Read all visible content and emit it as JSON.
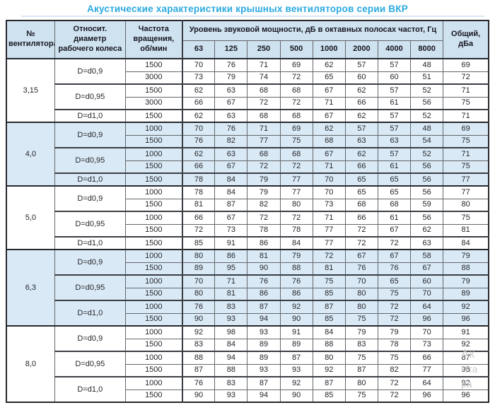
{
  "title": "Акустические характеристики крышных вентиляторов серии ВКР",
  "colors": {
    "title_accent": "#2aa9e0",
    "header_bg": "#cfe2f0",
    "shaded_section_bg": "#d9eaf6",
    "border_dark": "#26282c"
  },
  "watermark": {
    "lines": [
      "Ак",
      "Чта",
      "ра"
    ]
  },
  "table": {
    "headers": {
      "fan_number": "№ вентилятора",
      "diameter": "Относит. диаметр рабочего колеса",
      "speed": "Частота вращения, об/мин",
      "spl_group": "Уровень звуковой мощности, дБ в октавных полосах частот, Гц",
      "freq_bands": [
        "63",
        "125",
        "250",
        "500",
        "1000",
        "2000",
        "4000",
        "8000"
      ],
      "total": "Общий, дБа"
    },
    "sections": [
      {
        "fan": "3,15",
        "shaded": false,
        "groups": [
          {
            "diameter": "D=d0,9",
            "rows": [
              {
                "speed": "1500",
                "levels": [
                  70,
                  76,
                  71,
                  69,
                  62,
                  57,
                  57,
                  48
                ],
                "total": 69
              },
              {
                "speed": "3000",
                "levels": [
                  73,
                  79,
                  74,
                  72,
                  65,
                  60,
                  60,
                  51
                ],
                "total": 72
              }
            ]
          },
          {
            "diameter": "D=d0,95",
            "rows": [
              {
                "speed": "1500",
                "levels": [
                  62,
                  63,
                  68,
                  68,
                  67,
                  62,
                  57,
                  52
                ],
                "total": 71
              },
              {
                "speed": "3000",
                "levels": [
                  66,
                  67,
                  72,
                  72,
                  71,
                  66,
                  61,
                  56
                ],
                "total": 75
              }
            ]
          },
          {
            "diameter": "D=d1,0",
            "rows": [
              {
                "speed": "1500",
                "levels": [
                  62,
                  63,
                  68,
                  68,
                  67,
                  62,
                  57,
                  52
                ],
                "total": 71
              }
            ]
          }
        ]
      },
      {
        "fan": "4,0",
        "shaded": true,
        "groups": [
          {
            "diameter": "D=d0,9",
            "rows": [
              {
                "speed": "1000",
                "levels": [
                  70,
                  76,
                  71,
                  69,
                  62,
                  57,
                  57,
                  48
                ],
                "total": 69
              },
              {
                "speed": "1500",
                "levels": [
                  76,
                  82,
                  77,
                  75,
                  68,
                  63,
                  63,
                  54
                ],
                "total": 75
              }
            ]
          },
          {
            "diameter": "D=d0,95",
            "rows": [
              {
                "speed": "1000",
                "levels": [
                  62,
                  63,
                  68,
                  68,
                  67,
                  62,
                  57,
                  52
                ],
                "total": 71
              },
              {
                "speed": "1500",
                "levels": [
                  66,
                  67,
                  72,
                  72,
                  71,
                  66,
                  61,
                  56
                ],
                "total": 75
              }
            ]
          },
          {
            "diameter": "D=d1,0",
            "rows": [
              {
                "speed": "1500",
                "levels": [
                  78,
                  84,
                  79,
                  77,
                  70,
                  65,
                  65,
                  56
                ],
                "total": 77
              }
            ]
          }
        ]
      },
      {
        "fan": "5,0",
        "shaded": false,
        "groups": [
          {
            "diameter": "D=d0,9",
            "rows": [
              {
                "speed": "1000",
                "levels": [
                  78,
                  84,
                  79,
                  77,
                  70,
                  65,
                  65,
                  56
                ],
                "total": 77
              },
              {
                "speed": "1500",
                "levels": [
                  81,
                  87,
                  82,
                  80,
                  73,
                  68,
                  68,
                  59
                ],
                "total": 80
              }
            ]
          },
          {
            "diameter": "D=d0,95",
            "rows": [
              {
                "speed": "1000",
                "levels": [
                  66,
                  67,
                  72,
                  72,
                  71,
                  66,
                  61,
                  56
                ],
                "total": 75
              },
              {
                "speed": "1500",
                "levels": [
                  72,
                  73,
                  78,
                  78,
                  77,
                  72,
                  67,
                  62
                ],
                "total": 81
              }
            ]
          },
          {
            "diameter": "D=d1,0",
            "rows": [
              {
                "speed": "1500",
                "levels": [
                  85,
                  91,
                  86,
                  84,
                  77,
                  72,
                  72,
                  63
                ],
                "total": 84
              }
            ]
          }
        ]
      },
      {
        "fan": "6,3",
        "shaded": true,
        "groups": [
          {
            "diameter": "D=d0,9",
            "rows": [
              {
                "speed": "1000",
                "levels": [
                  80,
                  86,
                  81,
                  79,
                  72,
                  67,
                  67,
                  58
                ],
                "total": 79
              },
              {
                "speed": "1500",
                "levels": [
                  89,
                  95,
                  90,
                  88,
                  81,
                  76,
                  76,
                  67
                ],
                "total": 88
              }
            ]
          },
          {
            "diameter": "D=d0,95",
            "rows": [
              {
                "speed": "1000",
                "levels": [
                  70,
                  71,
                  76,
                  76,
                  75,
                  70,
                  65,
                  60
                ],
                "total": 79
              },
              {
                "speed": "1500",
                "levels": [
                  80,
                  81,
                  86,
                  86,
                  85,
                  80,
                  75,
                  70
                ],
                "total": 89
              }
            ]
          },
          {
            "diameter": "D=d1,0",
            "rows": [
              {
                "speed": "1000",
                "levels": [
                  76,
                  83,
                  87,
                  92,
                  87,
                  80,
                  72,
                  64
                ],
                "total": 92
              },
              {
                "speed": "1500",
                "levels": [
                  90,
                  93,
                  94,
                  90,
                  85,
                  75,
                  72,
                  96
                ],
                "total": 96
              }
            ]
          }
        ]
      },
      {
        "fan": "8,0",
        "shaded": false,
        "groups": [
          {
            "diameter": "D=d0,9",
            "rows": [
              {
                "speed": "1000",
                "levels": [
                  92,
                  98,
                  93,
                  91,
                  84,
                  79,
                  79,
                  70
                ],
                "total": 91
              },
              {
                "speed": "1500",
                "levels": [
                  83,
                  84,
                  89,
                  89,
                  88,
                  83,
                  78,
                  73
                ],
                "total": 92
              }
            ]
          },
          {
            "diameter": "D=d0,95",
            "rows": [
              {
                "speed": "1000",
                "levels": [
                  88,
                  94,
                  89,
                  87,
                  80,
                  75,
                  75,
                  66
                ],
                "total": 87
              },
              {
                "speed": "1500",
                "levels": [
                  87,
                  88,
                  93,
                  93,
                  92,
                  87,
                  82,
                  77
                ],
                "total": 96
              }
            ]
          },
          {
            "diameter": "D=d1,0",
            "rows": [
              {
                "speed": "1000",
                "levels": [
                  76,
                  83,
                  87,
                  92,
                  87,
                  80,
                  72,
                  64
                ],
                "total": 92
              },
              {
                "speed": "1500",
                "levels": [
                  90,
                  93,
                  94,
                  90,
                  85,
                  75,
                  72,
                  96
                ],
                "total": 96
              }
            ]
          }
        ]
      }
    ]
  }
}
